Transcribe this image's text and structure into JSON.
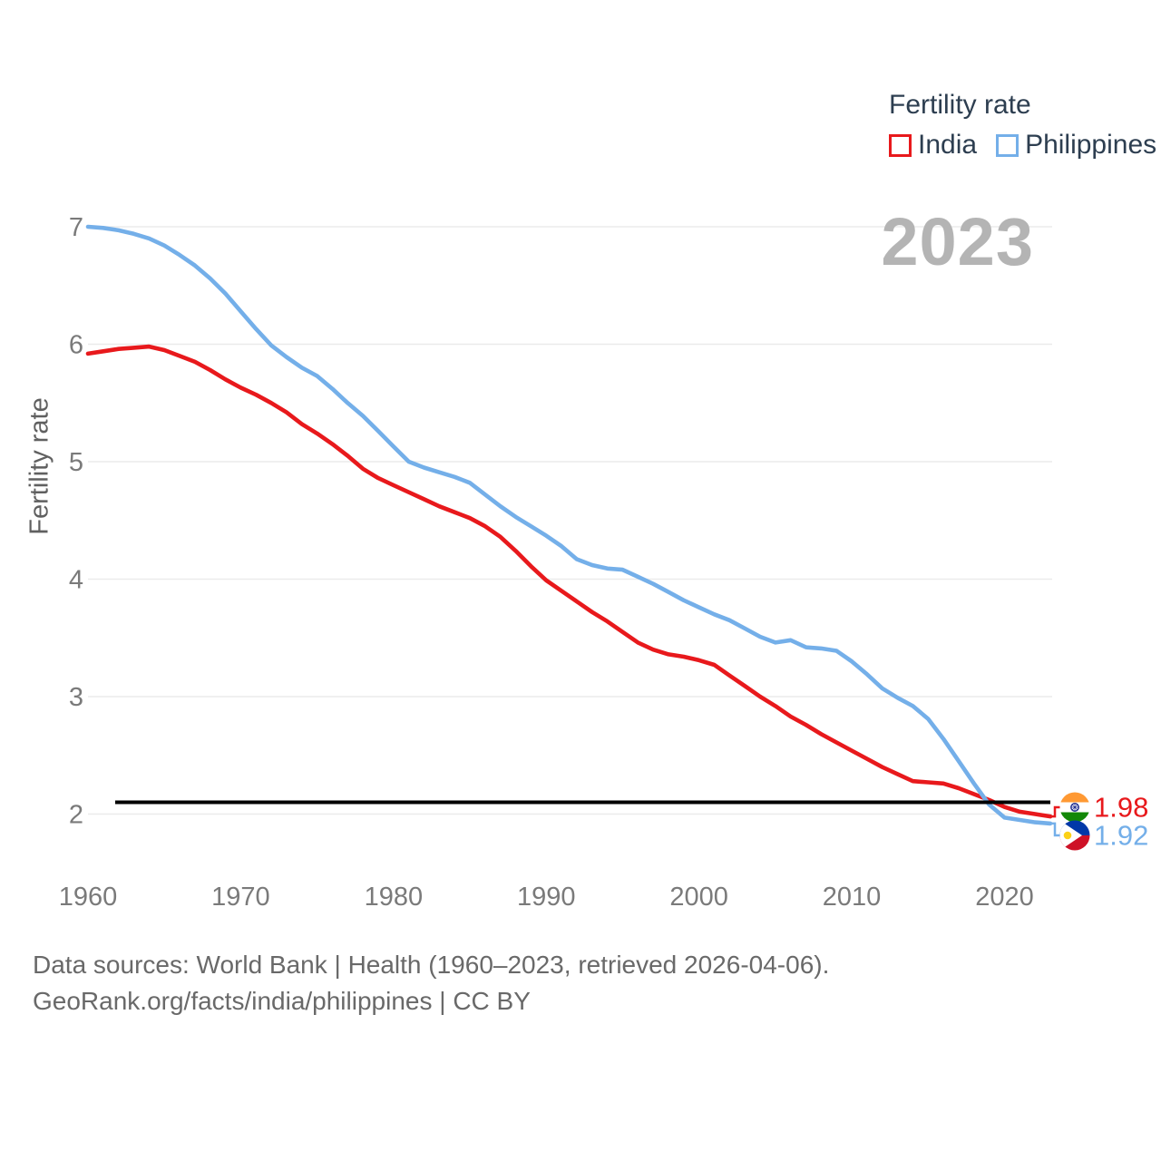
{
  "legend": {
    "title": "Fertility rate",
    "items": [
      {
        "label": "India",
        "color": "#e8191c"
      },
      {
        "label": "Philippines",
        "color": "#74afe9"
      }
    ]
  },
  "watermark": "2023",
  "y_axis": {
    "title": "Fertility rate",
    "ticks": [
      2,
      3,
      4,
      5,
      6,
      7
    ]
  },
  "x_axis": {
    "ticks": [
      1960,
      1970,
      1980,
      1990,
      2000,
      2010,
      2020
    ]
  },
  "annotations": {
    "replacement_level_line": 2.1
  },
  "end_labels": [
    {
      "series": "India",
      "value": "1.98",
      "flag": "india-flag-icon",
      "color": "#e8191c"
    },
    {
      "series": "Philippines",
      "value": "1.92",
      "flag": "philippines-flag-icon",
      "color": "#74afe9"
    }
  ],
  "footer": {
    "line1": "Data sources: World Bank | Health (1960–2023, retrieved 2026-04-06).",
    "line2": "GeoRank.org/facts/india/philippines | CC BY"
  },
  "chart_data": {
    "type": "line",
    "title": "Fertility rate",
    "xlabel": "",
    "ylabel": "Fertility rate",
    "xlim": [
      1960,
      2023
    ],
    "ylim": [
      1.75,
      7.1
    ],
    "grid": "horizontal",
    "legend_position": "top-right",
    "x": [
      1960,
      1961,
      1962,
      1963,
      1964,
      1965,
      1966,
      1967,
      1968,
      1969,
      1970,
      1971,
      1972,
      1973,
      1974,
      1975,
      1976,
      1977,
      1978,
      1979,
      1980,
      1981,
      1982,
      1983,
      1984,
      1985,
      1986,
      1987,
      1988,
      1989,
      1990,
      1991,
      1992,
      1993,
      1994,
      1995,
      1996,
      1997,
      1998,
      1999,
      2000,
      2001,
      2002,
      2003,
      2004,
      2005,
      2006,
      2007,
      2008,
      2009,
      2010,
      2011,
      2012,
      2013,
      2014,
      2015,
      2016,
      2017,
      2018,
      2019,
      2020,
      2021,
      2022,
      2023
    ],
    "series": [
      {
        "name": "India",
        "color": "#e8191c",
        "values": [
          5.92,
          5.94,
          5.96,
          5.97,
          5.98,
          5.95,
          5.9,
          5.85,
          5.78,
          5.7,
          5.63,
          5.57,
          5.5,
          5.42,
          5.32,
          5.24,
          5.15,
          5.05,
          4.94,
          4.86,
          4.8,
          4.74,
          4.68,
          4.62,
          4.57,
          4.52,
          4.45,
          4.36,
          4.24,
          4.11,
          3.99,
          3.9,
          3.81,
          3.72,
          3.64,
          3.55,
          3.46,
          3.4,
          3.36,
          3.34,
          3.31,
          3.27,
          3.18,
          3.09,
          3.0,
          2.92,
          2.83,
          2.76,
          2.68,
          2.61,
          2.54,
          2.47,
          2.4,
          2.34,
          2.28,
          2.27,
          2.26,
          2.22,
          2.17,
          2.12,
          2.06,
          2.02,
          2.0,
          1.98
        ]
      },
      {
        "name": "Philippines",
        "color": "#74afe9",
        "values": [
          7.0,
          6.99,
          6.97,
          6.94,
          6.9,
          6.84,
          6.76,
          6.67,
          6.56,
          6.43,
          6.28,
          6.13,
          5.99,
          5.89,
          5.8,
          5.73,
          5.62,
          5.5,
          5.39,
          5.26,
          5.13,
          5.0,
          4.95,
          4.91,
          4.87,
          4.82,
          4.72,
          4.62,
          4.53,
          4.45,
          4.37,
          4.28,
          4.17,
          4.12,
          4.09,
          4.08,
          4.02,
          3.96,
          3.89,
          3.82,
          3.76,
          3.7,
          3.65,
          3.58,
          3.51,
          3.46,
          3.48,
          3.42,
          3.41,
          3.39,
          3.3,
          3.19,
          3.07,
          2.99,
          2.92,
          2.81,
          2.64,
          2.45,
          2.26,
          2.08,
          1.97,
          1.95,
          1.93,
          1.92
        ]
      }
    ]
  }
}
